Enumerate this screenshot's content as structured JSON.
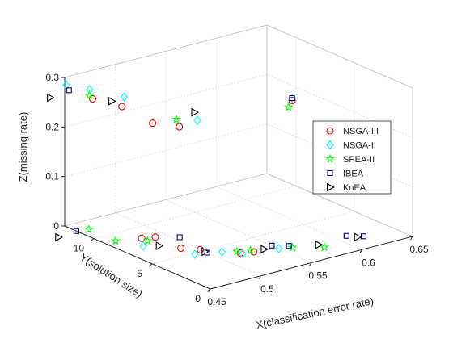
{
  "chart_data": {
    "type": "scatter",
    "projection": "3d",
    "xlabel": "X(classification error rate)",
    "ylabel": "Y(solution size)",
    "zlabel": "Z(missing rate)",
    "xlim": [
      0.45,
      0.65
    ],
    "ylim": [
      0,
      12.5
    ],
    "zlim": [
      0,
      0.3
    ],
    "x_ticks": [
      0.45,
      0.5,
      0.55,
      0.6,
      0.65
    ],
    "y_ticks": [
      0,
      5,
      10
    ],
    "z_ticks": [
      0,
      0.1,
      0.2,
      0.3
    ],
    "grid": true,
    "legend_position": "right",
    "series": [
      {
        "name": "NSGA-III",
        "marker": "circle",
        "color": "#ff0000",
        "points": [
          [
            0.458,
            10.8,
            0.27
          ],
          [
            0.472,
            9.5,
            0.26
          ],
          [
            0.485,
            8.0,
            0.235
          ],
          [
            0.5,
            7.0,
            0.23
          ],
          [
            0.6,
            6.0,
            0.24
          ],
          [
            0.48,
            8.5,
            0
          ],
          [
            0.49,
            8.2,
            0
          ],
          [
            0.49,
            6.0,
            0
          ],
          [
            0.5,
            5.2,
            0
          ],
          [
            0.52,
            3.5,
            0
          ],
          [
            0.53,
            3.2,
            0
          ]
        ]
      },
      {
        "name": "NSGA-II",
        "marker": "diamond",
        "color": "#00ffff",
        "points": [
          [
            0.44,
            11.5,
            0.3
          ],
          [
            0.455,
            10.8,
            0.29
          ],
          [
            0.48,
            10.0,
            0.27
          ],
          [
            0.52,
            7.2,
            0.23
          ],
          [
            0.6,
            6.0,
            0.245
          ],
          [
            0.47,
            7.5,
            0
          ],
          [
            0.49,
            4.8,
            0
          ],
          [
            0.51,
            4.2,
            0
          ],
          [
            0.52,
            3.3,
            0
          ],
          [
            0.55,
            2.8,
            0
          ]
        ]
      },
      {
        "name": "SPEA-II",
        "marker": "pentagram",
        "color": "#00ff00",
        "points": [
          [
            0.457,
            11.0,
            0.275
          ],
          [
            0.505,
            7.7,
            0.235
          ],
          [
            0.585,
            5.0,
            0.245
          ],
          [
            0.46,
            11.3,
            0
          ],
          [
            0.46,
            9.0,
            0
          ],
          [
            0.48,
            8.0,
            0
          ],
          [
            0.52,
            3.8,
            0
          ],
          [
            0.53,
            3.5,
            0
          ],
          [
            0.56,
            2.5,
            0
          ],
          [
            0.58,
            1.5,
            0
          ]
        ]
      },
      {
        "name": "IBEA",
        "marker": "square",
        "color": "#00008b",
        "points": [
          [
            0.445,
            11.7,
            0.285
          ],
          [
            0.6,
            6.0,
            0.245
          ],
          [
            0.45,
            11.5,
            0
          ],
          [
            0.505,
            7.4,
            0
          ],
          [
            0.5,
            4.6,
            0
          ],
          [
            0.55,
            3.4,
            0
          ],
          [
            0.56,
            2.8,
            0
          ],
          [
            0.61,
            2.2,
            0
          ],
          [
            0.62,
            1.6,
            0
          ]
        ]
      },
      {
        "name": "KnEA",
        "marker": "triangle-right",
        "color": "#000000",
        "points": [
          [
            0.43,
            12.0,
            0.275
          ],
          [
            0.47,
            10.2,
            0.265
          ],
          [
            0.53,
            8.3,
            0.23
          ],
          [
            0.43,
            11.3,
            0
          ],
          [
            0.48,
            7.0,
            0
          ],
          [
            0.5,
            4.8,
            0
          ],
          [
            0.54,
            3.2,
            0
          ],
          [
            0.58,
            2.0,
            0
          ],
          [
            0.615,
            1.7,
            0
          ]
        ]
      }
    ]
  }
}
